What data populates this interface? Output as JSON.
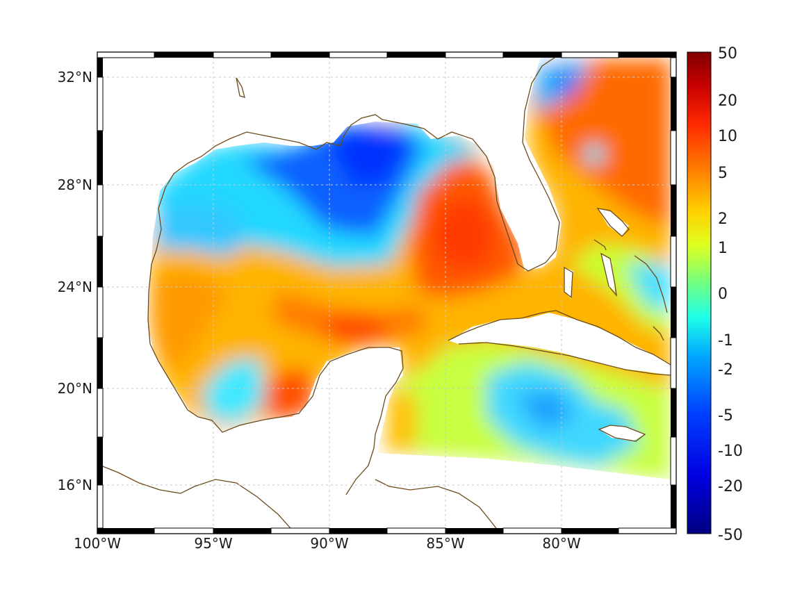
{
  "map": {
    "lon_range": [
      -100,
      -75
    ],
    "lat_range": [
      14,
      33
    ],
    "lon_ticks": [
      {
        "value": -100,
        "label": "100°W"
      },
      {
        "value": -95,
        "label": "95°W"
      },
      {
        "value": -90,
        "label": "90°W"
      },
      {
        "value": -85,
        "label": "85°W"
      },
      {
        "value": -80,
        "label": "80°W"
      }
    ],
    "lat_ticks": [
      {
        "value": 32,
        "label": "32°N"
      },
      {
        "value": 28,
        "label": "28°N"
      },
      {
        "value": 24,
        "label": "24°N"
      },
      {
        "value": 20,
        "label": "20°N"
      },
      {
        "value": 16,
        "label": "16°N"
      }
    ],
    "grid": true,
    "coastline_color": "#6b4a1a"
  },
  "colorbar": {
    "colormap": "jet",
    "scale": "symmetric-log",
    "labels": [
      "50",
      "20",
      "10",
      "5",
      "2",
      "1",
      "0",
      "-1",
      "-2",
      "-5",
      "-10",
      "-20",
      "-50"
    ],
    "colors": [
      "#800000",
      "#e00000",
      "#ff3a00",
      "#ff8a00",
      "#ffd000",
      "#e8ff10",
      "#7dff7a",
      "#20ffe0",
      "#00c8ff",
      "#0070ff",
      "#0010ff",
      "#0000b0",
      "#000080"
    ]
  }
}
